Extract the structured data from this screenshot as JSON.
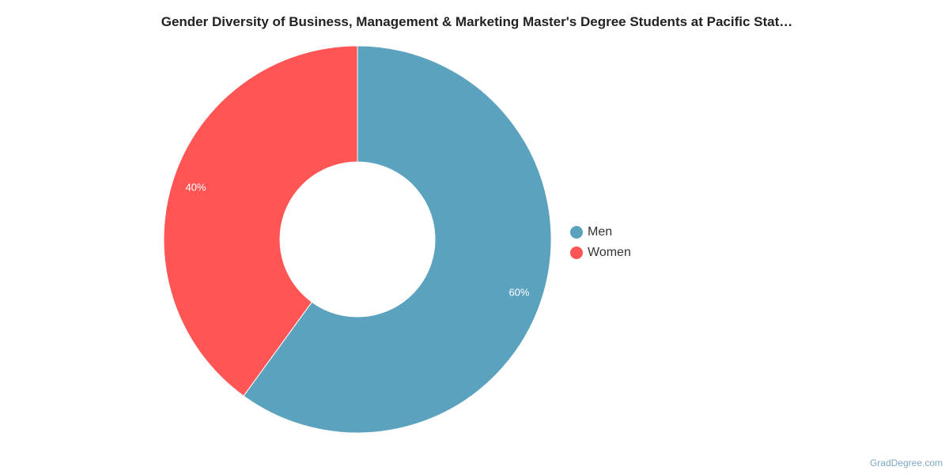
{
  "chart_data": {
    "type": "pie",
    "subtype": "donut",
    "title": "Gender Diversity of Business, Management & Marketing Master's Degree Students at Pacific Stat…",
    "categories": [
      "Men",
      "Women"
    ],
    "values": [
      60,
      40
    ],
    "labels": [
      "60%",
      "40%"
    ],
    "colors": [
      "#5ba2be",
      "#ff5555"
    ],
    "legend_position": "right"
  },
  "credit": "GradDegree.com"
}
